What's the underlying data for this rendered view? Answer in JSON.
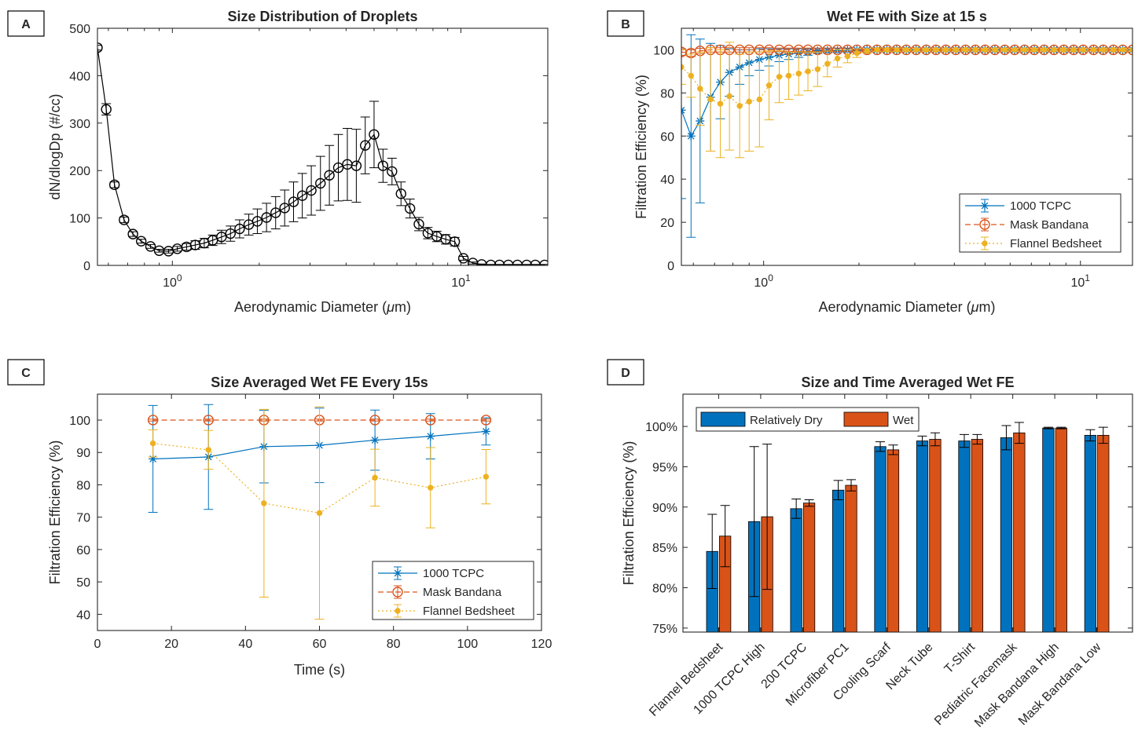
{
  "panel_labels": [
    "A",
    "B",
    "C",
    "D"
  ],
  "chart_data": [
    {
      "panel": "A",
      "type": "line",
      "title": "Size Distribution of Droplets",
      "xlabel": "Aerodynamic Diameter (μm)",
      "ylabel": "dN/dlogDp (#/cc)",
      "xscale": "log",
      "xlim": [
        0.55,
        20
      ],
      "ylim": [
        0,
        500
      ],
      "xticks": [
        {
          "v": 1,
          "label": "10^0"
        },
        {
          "v": 10,
          "label": "10^1"
        }
      ],
      "yticks": [
        0,
        100,
        200,
        300,
        400,
        500
      ],
      "color": "#000000",
      "series": [
        {
          "x": [
            0.55,
            0.59,
            0.63,
            0.68,
            0.73,
            0.78,
            0.84,
            0.9,
            0.97,
            1.04,
            1.12,
            1.2,
            1.29,
            1.38,
            1.48,
            1.59,
            1.71,
            1.84,
            1.97,
            2.12,
            2.28,
            2.45,
            2.63,
            2.82,
            3.03,
            3.26,
            3.5,
            3.76,
            4.04,
            4.34,
            4.66,
            5.0,
            5.37,
            5.77,
            6.2,
            6.66,
            7.15,
            7.68,
            8.25,
            8.86,
            9.52,
            10.2,
            11.0,
            11.8,
            12.7,
            13.6,
            14.6,
            15.7,
            16.9,
            18.1,
            19.5
          ],
          "y": [
            459,
            329,
            170,
            96,
            66,
            51,
            40,
            31,
            30,
            35,
            39,
            43,
            47,
            53,
            60,
            67,
            77,
            86,
            93,
            101,
            111,
            121,
            134,
            147,
            158,
            173,
            190,
            206,
            213,
            210,
            253,
            276,
            210,
            198,
            151,
            120,
            87,
            68,
            61,
            55,
            50,
            15,
            5,
            2,
            1,
            1,
            1,
            1,
            1,
            1,
            1
          ],
          "err": [
            5,
            12,
            6,
            6,
            5,
            4,
            4,
            3,
            4,
            5,
            7,
            9,
            10,
            11,
            14,
            16,
            19,
            22,
            26,
            30,
            34,
            38,
            42,
            47,
            52,
            57,
            63,
            70,
            76,
            77,
            60,
            70,
            35,
            28,
            25,
            20,
            14,
            12,
            11,
            10,
            9,
            4,
            2,
            1,
            1,
            1,
            1,
            1,
            1,
            1,
            1
          ]
        }
      ]
    },
    {
      "panel": "B",
      "type": "line",
      "title": "Wet FE with Size at 15 s",
      "xlabel": "Aerodynamic Diameter (μm)",
      "ylabel": "Filtration Efficiency (%)",
      "xscale": "log",
      "xlim": [
        0.55,
        14.6
      ],
      "ylim": [
        0,
        110
      ],
      "xticks": [
        {
          "v": 1,
          "label": "10^0"
        },
        {
          "v": 10,
          "label": "10^1"
        }
      ],
      "yticks": [
        0,
        20,
        40,
        60,
        80,
        100
      ],
      "legend": "bottom-right",
      "x": [
        0.55,
        0.59,
        0.63,
        0.68,
        0.73,
        0.78,
        0.84,
        0.9,
        0.97,
        1.04,
        1.12,
        1.2,
        1.29,
        1.38,
        1.48,
        1.59,
        1.71,
        1.84,
        1.97,
        2.12,
        2.28,
        2.45,
        2.63,
        2.82,
        3.03,
        3.26,
        3.5,
        3.76,
        4.04,
        4.34,
        4.66,
        5.0,
        5.37,
        5.77,
        6.2,
        6.66,
        7.15,
        7.68,
        8.25,
        8.86,
        9.52,
        10.2,
        11.0,
        11.8,
        12.7,
        13.6,
        14.6
      ],
      "series": [
        {
          "name": "1000 TCPC",
          "color": "#0072BD",
          "marker": "star",
          "dash": "",
          "y": [
            72,
            60,
            67,
            78,
            85,
            89.5,
            92,
            94,
            95.5,
            96.5,
            97.5,
            98,
            98.5,
            99,
            99.5,
            99.6,
            99.7,
            99.8,
            99.9,
            100,
            100,
            100,
            100,
            100,
            100,
            100,
            100,
            100,
            100,
            100,
            100,
            100,
            100,
            100,
            100,
            100,
            100,
            100,
            100,
            100,
            100,
            100,
            100,
            100,
            100,
            100,
            100
          ],
          "err": [
            41,
            47,
            38,
            25,
            17,
            11,
            8,
            6,
            5,
            4,
            3,
            2.5,
            2,
            1.5,
            1.2,
            1,
            1,
            0.8,
            0.5,
            0.5,
            0.5,
            0.5,
            0.5,
            0.5,
            0.5,
            0.5,
            0.5,
            0.5,
            0.5,
            0.5,
            0.5,
            0.5,
            0.5,
            0.5,
            0.5,
            0.5,
            0.5,
            0.5,
            0.5,
            0.5,
            0.5,
            0.5,
            0.5,
            0.5,
            0.5,
            0.5,
            0.5
          ]
        },
        {
          "name": "Mask Bandana",
          "color": "#D95319",
          "marker": "circle",
          "dash": "7,4",
          "y": [
            99,
            98.5,
            99.5,
            100,
            100,
            100,
            100,
            100,
            100,
            100,
            100,
            100,
            100,
            100,
            100,
            100,
            100,
            100,
            100,
            100,
            100,
            100,
            100,
            100,
            100,
            100,
            100,
            100,
            100,
            100,
            100,
            100,
            100,
            100,
            100,
            100,
            100,
            100,
            100,
            100,
            100,
            100,
            100,
            100,
            100,
            100,
            100
          ],
          "err": [
            1.5,
            1.5,
            1.2,
            1,
            1,
            1,
            1,
            1,
            1,
            1,
            0.8,
            0.8,
            0.8,
            0.8,
            0.8,
            0.8,
            0.8,
            0.8,
            0.5,
            0.5,
            0.5,
            0.5,
            0.5,
            0.5,
            0.5,
            0.5,
            0.5,
            0.5,
            0.5,
            0.5,
            0.5,
            0.5,
            0.5,
            0.5,
            0.5,
            0.5,
            0.5,
            0.5,
            0.5,
            0.5,
            0.5,
            0.5,
            0.5,
            0.5,
            0.5,
            0.5,
            0.5
          ]
        },
        {
          "name": "Flannel Bedsheet",
          "color": "#EDB120",
          "marker": "dot",
          "dash": "2,3",
          "y": [
            92,
            88,
            82,
            77,
            75,
            78.5,
            74,
            76,
            77,
            83.5,
            87.5,
            88,
            89,
            90,
            91,
            93.5,
            96,
            97,
            98.5,
            99.5,
            100,
            100,
            100,
            100,
            100,
            100,
            100,
            100,
            100,
            100,
            100,
            100,
            100,
            100,
            100,
            100,
            100,
            100,
            100,
            100,
            100,
            100,
            100,
            100,
            100,
            100,
            100
          ],
          "err": [
            8,
            10,
            17,
            24,
            25,
            25,
            24,
            23,
            22,
            16,
            12,
            11,
            10,
            9,
            8,
            6,
            4,
            3,
            2,
            1,
            0.8,
            0.8,
            0.8,
            0.5,
            0.5,
            0.5,
            0.5,
            0.5,
            0.5,
            0.5,
            0.5,
            0.5,
            0.5,
            0.5,
            0.5,
            0.5,
            0.5,
            0.5,
            0.5,
            0.5,
            0.5,
            0.5,
            0.5,
            0.5,
            0.5,
            0.5,
            0.5
          ]
        }
      ]
    },
    {
      "panel": "C",
      "type": "line",
      "title": "Size Averaged Wet FE Every 15s",
      "xlabel": "Time (s)",
      "ylabel": "Filtration Efficiency (%)",
      "xlim": [
        0,
        120
      ],
      "ylim": [
        35,
        108
      ],
      "xticks": [
        0,
        20,
        40,
        60,
        80,
        100,
        120
      ],
      "yticks": [
        40,
        50,
        60,
        70,
        80,
        90,
        100
      ],
      "legend": "bottom-right",
      "x": [
        15,
        30,
        45,
        60,
        75,
        90,
        105
      ],
      "series": [
        {
          "name": "1000 TCPC",
          "color": "#0072BD",
          "marker": "star",
          "dash": "",
          "y": [
            88,
            88.6,
            91.8,
            92.2,
            93.8,
            95,
            96.5
          ],
          "err": [
            16.5,
            16.2,
            11.2,
            11.5,
            9.3,
            7,
            4.2
          ]
        },
        {
          "name": "Mask Bandana",
          "color": "#D95319",
          "marker": "circle",
          "dash": "7,4",
          "y": [
            100,
            100,
            100,
            100,
            100,
            100,
            100
          ],
          "err": [
            0.3,
            0.3,
            0.3,
            0.3,
            0.3,
            0.3,
            0.3
          ]
        },
        {
          "name": "Flannel Bedsheet",
          "color": "#EDB120",
          "marker": "dot",
          "dash": "2,3",
          "y": [
            92.8,
            90.8,
            74.3,
            71.3,
            82.2,
            79.1,
            82.5
          ],
          "err": [
            4.2,
            6,
            29,
            32.8,
            8.8,
            12.4,
            8.4
          ]
        }
      ]
    },
    {
      "panel": "D",
      "type": "bar",
      "title": "Size and Time Averaged Wet FE",
      "ylabel": "Filtration Efficiency (%)",
      "ylim": [
        74.5,
        104
      ],
      "yticks": [
        75,
        80,
        85,
        90,
        95,
        100
      ],
      "ytick_labels": [
        "75%",
        "80%",
        "85%",
        "90%",
        "95%",
        "100%"
      ],
      "legend": "top-left",
      "categories": [
        "Flannel Bedsheet",
        "1000 TCPC High",
        "200 TCPC",
        "Microfiber PC1",
        "Cooling Scarf",
        "Neck Tube",
        "T-Shirt",
        "Pediatric Facemask",
        "Mask Bandana High",
        "Mask Bandana Low"
      ],
      "series": [
        {
          "name": "Relatively Dry",
          "color": "#0072BD",
          "values": [
            84.5,
            88.2,
            89.8,
            92.1,
            97.5,
            98.2,
            98.2,
            98.6,
            99.8,
            98.9
          ],
          "err": [
            4.6,
            9.3,
            1.2,
            1.2,
            0.6,
            0.6,
            0.8,
            1.5,
            0.1,
            0.7
          ]
        },
        {
          "name": "Wet",
          "color": "#D95319",
          "values": [
            86.4,
            88.8,
            90.5,
            92.7,
            97.1,
            98.4,
            98.4,
            99.2,
            99.8,
            98.9
          ],
          "err": [
            3.8,
            9,
            0.4,
            0.7,
            0.6,
            0.8,
            0.6,
            1.3,
            0.1,
            1
          ]
        }
      ]
    }
  ]
}
